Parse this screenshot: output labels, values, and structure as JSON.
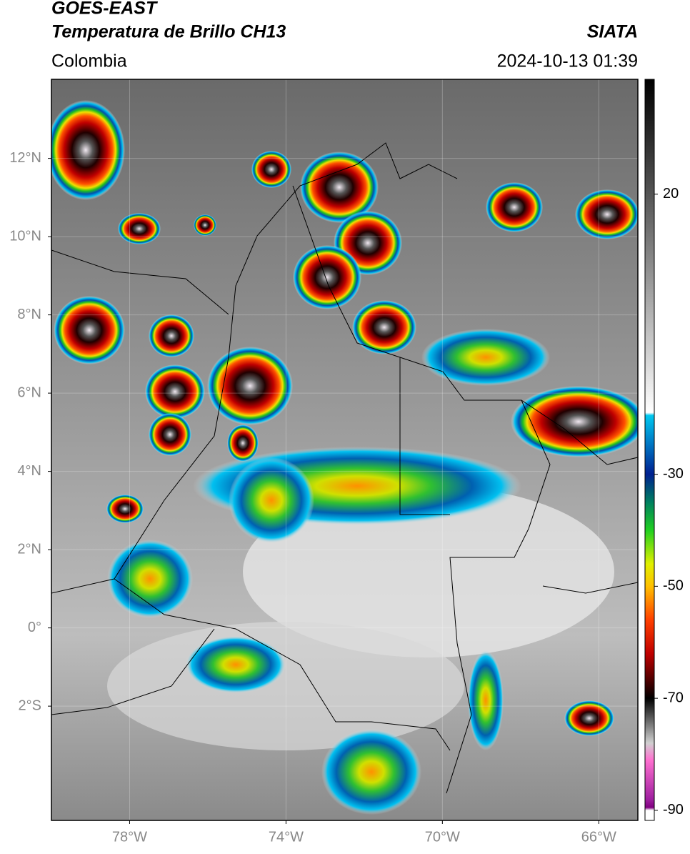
{
  "header": {
    "satellite": "GOES-EAST",
    "product": "Temperatura de Brillo CH13",
    "region": "Colombia",
    "source": "SIATA",
    "datetime": "2024-10-13 01:39"
  },
  "map": {
    "lonlim": [
      -80,
      -65
    ],
    "latlim": [
      -4.92,
      14.02
    ],
    "lon_ticks": [
      {
        "value": -78,
        "label": "78°W"
      },
      {
        "value": -74,
        "label": "74°W"
      },
      {
        "value": -70,
        "label": "70°W"
      },
      {
        "value": -66,
        "label": "66°W"
      }
    ],
    "lat_ticks": [
      {
        "value": 12,
        "label": "12°N"
      },
      {
        "value": 10,
        "label": "10°N"
      },
      {
        "value": 8,
        "label": "8°N"
      },
      {
        "value": 6,
        "label": "6°N"
      },
      {
        "value": 4,
        "label": "4°N"
      },
      {
        "value": 2,
        "label": "2°N"
      },
      {
        "value": 0,
        "label": "0°"
      },
      {
        "value": -2,
        "label": "2°S"
      }
    ],
    "grid": true
  },
  "colorbar": {
    "lim": [
      -91.8,
      40.5
    ],
    "ticks": [
      20,
      -30,
      -50,
      -70,
      -90
    ],
    "colormap": [
      {
        "value": 40.5,
        "color": "#000000"
      },
      {
        "value": 20,
        "color": "#555555"
      },
      {
        "value": -19,
        "color": "#ffffff"
      },
      {
        "value": -19.5,
        "color": "#00c8f0"
      },
      {
        "value": -25,
        "color": "#0070c0"
      },
      {
        "value": -30,
        "color": "#002090"
      },
      {
        "value": -35,
        "color": "#008060"
      },
      {
        "value": -40,
        "color": "#20d020"
      },
      {
        "value": -46,
        "color": "#e0f000"
      },
      {
        "value": -50,
        "color": "#ffc000"
      },
      {
        "value": -56,
        "color": "#ff4000"
      },
      {
        "value": -62,
        "color": "#c00000"
      },
      {
        "value": -68,
        "color": "#300000"
      },
      {
        "value": -70,
        "color": "#000000"
      },
      {
        "value": -78,
        "color": "#d0d0d0"
      },
      {
        "value": -81,
        "color": "#ff70d0"
      },
      {
        "value": -88,
        "color": "#a020a0"
      },
      {
        "value": -89.5,
        "color": "#800080"
      },
      {
        "value": -90,
        "color": "#ffffff"
      }
    ]
  }
}
